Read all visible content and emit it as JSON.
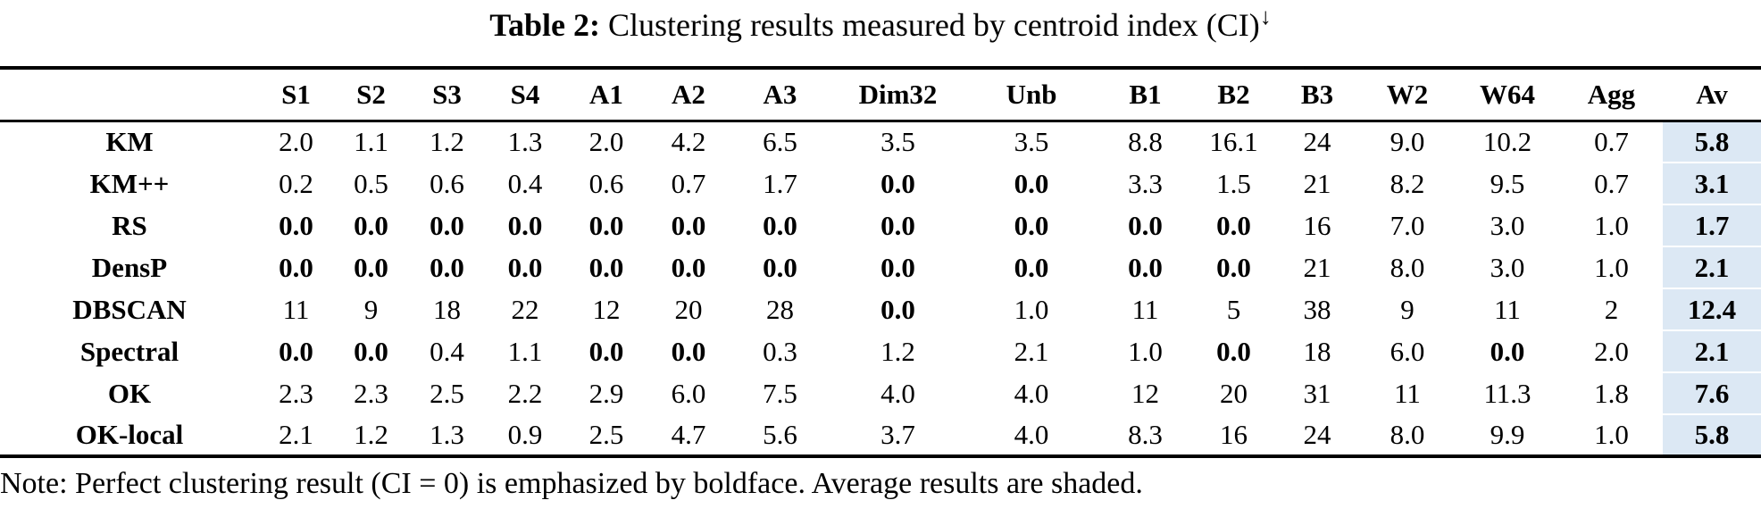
{
  "caption": {
    "prefix": "Table 2:",
    "text": " Clustering results measured by centroid index (CI)",
    "arrow": "↓"
  },
  "note": "Note: Perfect clustering result (CI = 0) is emphasized by boldface. Average results are shaded.",
  "colors": {
    "shade": "#dce8f4"
  },
  "chart_data": {
    "type": "table",
    "title": "Table 2: Clustering results measured by centroid index (CI)",
    "columns": [
      "S1",
      "S2",
      "S3",
      "S4",
      "A1",
      "A2",
      "A3",
      "Dim32",
      "Unb",
      "B1",
      "B2",
      "B3",
      "W2",
      "W64",
      "Agg",
      "Av"
    ],
    "rows": [
      {
        "label": "KM",
        "values": [
          "2.0",
          "1.1",
          "1.2",
          "1.3",
          "2.0",
          "4.2",
          "6.5",
          "3.5",
          "3.5",
          "8.8",
          "16.1",
          "24",
          "9.0",
          "10.2",
          "0.7",
          "5.8"
        ],
        "bold": [
          15
        ]
      },
      {
        "label": "KM++",
        "values": [
          "0.2",
          "0.5",
          "0.6",
          "0.4",
          "0.6",
          "0.7",
          "1.7",
          "0.0",
          "0.0",
          "3.3",
          "1.5",
          "21",
          "8.2",
          "9.5",
          "0.7",
          "3.1"
        ],
        "bold": [
          7,
          8,
          15
        ]
      },
      {
        "label": "RS",
        "values": [
          "0.0",
          "0.0",
          "0.0",
          "0.0",
          "0.0",
          "0.0",
          "0.0",
          "0.0",
          "0.0",
          "0.0",
          "0.0",
          "16",
          "7.0",
          "3.0",
          "1.0",
          "1.7"
        ],
        "bold": [
          0,
          1,
          2,
          3,
          4,
          5,
          6,
          7,
          8,
          9,
          10,
          15
        ]
      },
      {
        "label": "DensP",
        "values": [
          "0.0",
          "0.0",
          "0.0",
          "0.0",
          "0.0",
          "0.0",
          "0.0",
          "0.0",
          "0.0",
          "0.0",
          "0.0",
          "21",
          "8.0",
          "3.0",
          "1.0",
          "2.1"
        ],
        "bold": [
          0,
          1,
          2,
          3,
          4,
          5,
          6,
          7,
          8,
          9,
          10,
          15
        ]
      },
      {
        "label": "DBSCAN",
        "values": [
          "11",
          "9",
          "18",
          "22",
          "12",
          "20",
          "28",
          "0.0",
          "1.0",
          "11",
          "5",
          "38",
          "9",
          "11",
          "2",
          "12.4"
        ],
        "bold": [
          7,
          15
        ]
      },
      {
        "label": "Spectral",
        "values": [
          "0.0",
          "0.0",
          "0.4",
          "1.1",
          "0.0",
          "0.0",
          "0.3",
          "1.2",
          "2.1",
          "1.0",
          "0.0",
          "18",
          "6.0",
          "0.0",
          "2.0",
          "2.1"
        ],
        "bold": [
          0,
          1,
          4,
          5,
          10,
          13,
          15
        ]
      },
      {
        "label": "OK",
        "values": [
          "2.3",
          "2.3",
          "2.5",
          "2.2",
          "2.9",
          "6.0",
          "7.5",
          "4.0",
          "4.0",
          "12",
          "20",
          "31",
          "11",
          "11.3",
          "1.8",
          "7.6"
        ],
        "bold": [
          15
        ]
      },
      {
        "label": "OK-local",
        "values": [
          "2.1",
          "1.2",
          "1.3",
          "0.9",
          "2.5",
          "4.7",
          "5.6",
          "3.7",
          "4.0",
          "8.3",
          "16",
          "24",
          "8.0",
          "9.9",
          "1.0",
          "5.8"
        ],
        "bold": [
          15
        ]
      }
    ]
  }
}
